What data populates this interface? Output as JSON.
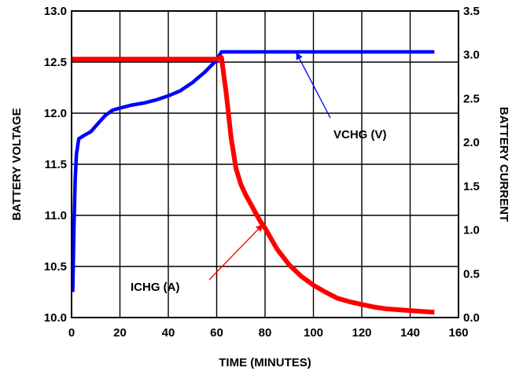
{
  "chart_data": {
    "type": "line",
    "xlabel": "TIME (MINUTES)",
    "ylabel_left": "BATTERY VOLTAGE",
    "ylabel_right": "BATTERY CURRENT",
    "xlim": [
      0,
      160
    ],
    "ylim_left": [
      10.0,
      13.0
    ],
    "ylim_right": [
      0.0,
      3.5
    ],
    "x_ticks": [
      "0",
      "20",
      "40",
      "60",
      "80",
      "100",
      "120",
      "140",
      "160"
    ],
    "y_left_ticks": [
      "10.0",
      "10.5",
      "11.0",
      "11.5",
      "12.0",
      "12.5",
      "13.0"
    ],
    "y_right_ticks": [
      "0.0",
      "0.5",
      "1.0",
      "1.5",
      "2.0",
      "2.5",
      "3.0",
      "3.5"
    ],
    "grid": true,
    "series": [
      {
        "name": "VCHG (V)",
        "axis": "left",
        "color": "#0000ff",
        "points": [
          [
            0.5,
            10.25
          ],
          [
            1,
            10.9
          ],
          [
            1.5,
            11.35
          ],
          [
            2,
            11.6
          ],
          [
            3,
            11.75
          ],
          [
            5,
            11.78
          ],
          [
            8,
            11.82
          ],
          [
            11,
            11.9
          ],
          [
            14,
            11.98
          ],
          [
            17,
            12.03
          ],
          [
            20,
            12.05
          ],
          [
            25,
            12.08
          ],
          [
            30,
            12.1
          ],
          [
            35,
            12.13
          ],
          [
            40,
            12.17
          ],
          [
            45,
            12.22
          ],
          [
            50,
            12.3
          ],
          [
            55,
            12.4
          ],
          [
            60,
            12.52
          ],
          [
            62,
            12.6
          ],
          [
            150,
            12.6
          ]
        ]
      },
      {
        "name": "ICHG (A)",
        "axis": "right",
        "color": "#ff0000",
        "points": [
          [
            0,
            2.95
          ],
          [
            60,
            2.95
          ],
          [
            62,
            2.97
          ],
          [
            64,
            2.55
          ],
          [
            66,
            2.05
          ],
          [
            68,
            1.7
          ],
          [
            70,
            1.52
          ],
          [
            72,
            1.4
          ],
          [
            74,
            1.3
          ],
          [
            76,
            1.2
          ],
          [
            78,
            1.1
          ],
          [
            80,
            1.02
          ],
          [
            85,
            0.78
          ],
          [
            90,
            0.6
          ],
          [
            95,
            0.47
          ],
          [
            100,
            0.37
          ],
          [
            105,
            0.29
          ],
          [
            110,
            0.22
          ],
          [
            115,
            0.18
          ],
          [
            120,
            0.15
          ],
          [
            125,
            0.12
          ],
          [
            130,
            0.1
          ],
          [
            135,
            0.09
          ],
          [
            140,
            0.08
          ],
          [
            145,
            0.07
          ],
          [
            150,
            0.06
          ]
        ]
      }
    ],
    "annotations": [
      {
        "text": "VCHG (V)",
        "target_series": "VCHG (V)",
        "color": "#0000ff",
        "point_x": 93,
        "point_y": 12.59
      },
      {
        "text": "ICHG (A)",
        "target_series": "ICHG (A)",
        "color": "#ff0000",
        "point_x": 79,
        "point_y_right": 1.06
      }
    ]
  }
}
